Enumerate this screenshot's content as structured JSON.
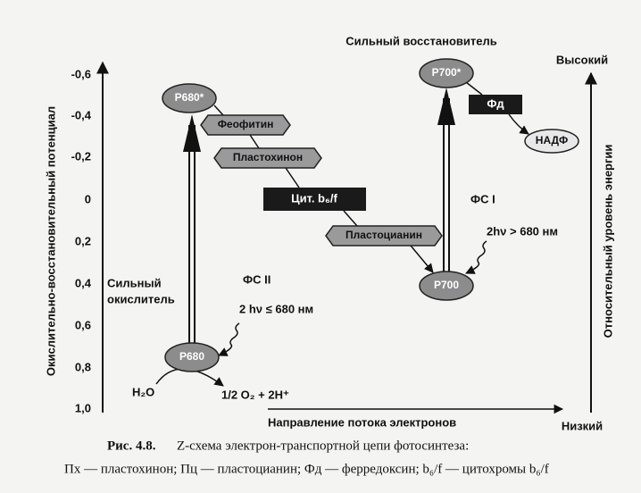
{
  "axis": {
    "label": "Окислительно-восстановительный потенциал",
    "ticks": [
      "-0,6",
      "-0,4",
      "-0,2",
      "0",
      "0,2",
      "0,4",
      "0,6",
      "0,8",
      "1,0"
    ]
  },
  "right_axis": {
    "label": "Относительный уровень энергии",
    "high": "Высокий",
    "low": "Низкий"
  },
  "nodes": {
    "p680_excited": "P680*",
    "p680": "P680",
    "pheophytin": "Феофитин",
    "plastoquinone": "Пластохинон",
    "cytochrome": "Цит. b₆/f",
    "plastocyanin": "Пластоцианин",
    "p700": "P700",
    "p700_excited": "P700*",
    "ferredoxin": "Фд",
    "nadp": "НАДФ"
  },
  "labels": {
    "strong_reductant": "Сильный восстановитель",
    "strong_oxidant_1": "Сильный",
    "strong_oxidant_2": "окислитель",
    "ps2": "ФС II",
    "ps1": "ФС I",
    "light_ps2": "2 hν ≤ 680 нм",
    "light_ps1": "2hν > 680 нм",
    "water": "H₂O",
    "products": "1/2 O₂ + 2H⁺",
    "flow": "Направление потока электронов"
  },
  "caption": {
    "number": "Рис. 4.8.",
    "title": "Z-схема электрон-транспортной цепи фотосинтеза:",
    "legend": "Пх — пластохинон; Пц — пластоцианин; Фд — ферредоксин; b₆/f — цитохромы b₆/f"
  }
}
